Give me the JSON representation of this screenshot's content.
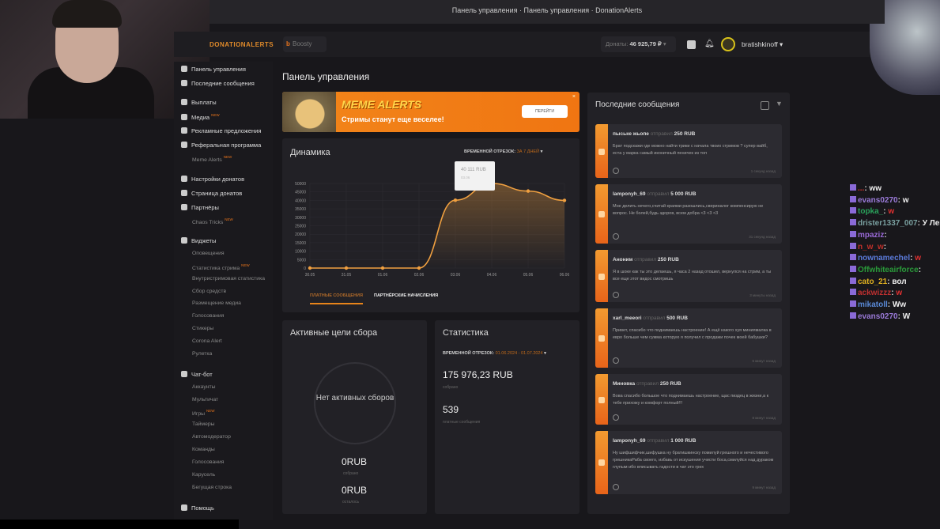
{
  "window": {
    "title": "Панель управления · Панель управления · DonationAlerts"
  },
  "header": {
    "logo": "DONATIONALERTS",
    "boosty": "Boosty",
    "donates_label": "Донаты:",
    "donates_value": "46 925,79 ₽",
    "username": "bratishkinoff"
  },
  "sidebar": {
    "items": [
      {
        "label": "Панель управления",
        "type": "main"
      },
      {
        "label": "Последние сообщения",
        "type": "main"
      },
      {
        "label": "Выплаты",
        "type": "main"
      },
      {
        "label": "Медиа",
        "type": "main",
        "badge": "NEW"
      },
      {
        "label": "Рекламные предложения",
        "type": "main"
      },
      {
        "label": "Реферальная программа",
        "type": "main"
      },
      {
        "label": "Meme Alerts",
        "type": "sub",
        "badge": "NEW"
      },
      {
        "label": "Настройки донатов",
        "type": "main"
      },
      {
        "label": "Страница донатов",
        "type": "main"
      },
      {
        "label": "Партнёры",
        "type": "main"
      },
      {
        "label": "Chaos Tricks",
        "type": "sub",
        "badge": "NEW"
      },
      {
        "label": "Виджеты",
        "type": "main"
      },
      {
        "label": "Оповещения",
        "type": "sub"
      },
      {
        "label": "Статистика стрима",
        "type": "sub",
        "badge": "NEW"
      },
      {
        "label": "Внутристримовая статистика",
        "type": "sub"
      },
      {
        "label": "Сбор средств",
        "type": "sub"
      },
      {
        "label": "Размещение медиа",
        "type": "sub"
      },
      {
        "label": "Голосования",
        "type": "sub"
      },
      {
        "label": "Стикеры",
        "type": "sub"
      },
      {
        "label": "Corona Alert",
        "type": "sub"
      },
      {
        "label": "Рулетка",
        "type": "sub"
      },
      {
        "label": "Чат-бот",
        "type": "main"
      },
      {
        "label": "Аккаунты",
        "type": "sub"
      },
      {
        "label": "Мультичат",
        "type": "sub"
      },
      {
        "label": "Игры",
        "type": "sub",
        "badge": "NEW"
      },
      {
        "label": "Таймеры",
        "type": "sub"
      },
      {
        "label": "Автомодератор",
        "type": "sub"
      },
      {
        "label": "Команды",
        "type": "sub"
      },
      {
        "label": "Голосования",
        "type": "sub"
      },
      {
        "label": "Карусель",
        "type": "sub"
      },
      {
        "label": "Бегущая строка",
        "type": "sub"
      },
      {
        "label": "Помощь",
        "type": "main"
      }
    ]
  },
  "main": {
    "title": "Панель управления",
    "banner": {
      "title": "MEME ALERTS",
      "subtitle": "Стримы станут еще веселее!",
      "button": "ПЕРЕЙТИ",
      "close": "×"
    },
    "dynamics": {
      "title": "Динамика",
      "period_label": "ВРЕМЕННОЙ ОТРЕЗОК:",
      "period_value": "ЗА 7 ДНЕЙ",
      "tabs": [
        "ПЛАТНЫЕ СООБЩЕНИЯ",
        "ПАРТНЁРСКИЕ НАЧИСЛЕНИЯ"
      ],
      "tooltip_value": "40 111 RUB",
      "tooltip_date": "03.06"
    },
    "goals": {
      "title": "Активные цели сбора",
      "empty": "Нет активных сборов",
      "collected": "0RUB",
      "collected_label": "собрано",
      "left": "0RUB",
      "left_label": "осталось"
    },
    "stats": {
      "title": "Статистика",
      "period_label": "ВРЕМЕННОЙ ОТРЕЗОК:",
      "period_value": "01.06.2024 - 01.07.2024",
      "total": "175 976,23 RUB",
      "total_label": "собрано",
      "count": "539",
      "count_label": "платные сообщения"
    }
  },
  "messages": {
    "title": "Последние сообщения",
    "sent_word": "отправил",
    "items": [
      {
        "user": "пыське жьопе",
        "amount": "250 RUB",
        "text": "Брат подскажи где можно найти трики с начала твоих стримов ? супер вайб, еста у марка самый иконичный пеничек из топ",
        "time": "1 секунд назад"
      },
      {
        "user": "lamponyh_69",
        "amount": "5 000 RUB",
        "text": "Мне делить нечего,считай краями разошлись,свериналог компенсирую не вопрос. Не болей,будь здоров, всем добра <3 <3 <3",
        "time": "31 секунд назад"
      },
      {
        "user": "Аноним",
        "amount": "250 RUB",
        "text": "Я в шоке как ты это делаешь, я часа 2 назад отошел, вернулся на стрим, а ты все еще этот видос смотришь",
        "time": "3 минуты назад"
      },
      {
        "user": "xarl_meeori",
        "amount": "500 RUB",
        "text": "Привет, спасибо что поднимаешь настроение! А ещё какого хуя миниямалка в евро больше чем сумма которую я получил с продажи почек моей бабушки?",
        "time": "6 минут назад"
      },
      {
        "user": "Миновка",
        "amount": "250 RUB",
        "text": "Вова спасибо большое что поднимаешь настроение, щас пиздец в жизни,а к тебе прихожу и комфорт полный!!!",
        "time": "8 минут назад"
      },
      {
        "user": "lamponyh_69",
        "amount": "1 000 RUB",
        "text": "Ну шифшифчик,шифушка ну братишкинску помилуй грешного и нечестивого грешникаРаба своего, избавь от искушения учисти бoса,смилуйся над дураком глупым ибо вписывать гадости в чат это грех",
        "time": "9 минут назад"
      }
    ]
  },
  "chat": [
    {
      "user": "...",
      "text": "ww",
      "color": "#d0302a"
    },
    {
      "user": "evans0270",
      "text": "w",
      "color": "#9a7ad8"
    },
    {
      "user": "topka_",
      "text": "w",
      "color": "#2aa05a",
      "textcolor": "#e03030"
    },
    {
      "user": "drister1337_007",
      "text": "У Лексингтон?!",
      "color": "#7aa0a0"
    },
    {
      "user": "mpaziz",
      "text": "",
      "color": "#9a6ad8"
    },
    {
      "user": "n_w_w",
      "text": "",
      "color": "#c0302a"
    },
    {
      "user": "nownamechel",
      "text": "w",
      "color": "#5a7ad8",
      "textcolor": "#e03030"
    },
    {
      "user": "Offwhiteairforce",
      "text": "",
      "color": "#2a9a3a"
    },
    {
      "user": "cato_21",
      "text": "вол",
      "color": "#e0b020"
    },
    {
      "user": "ackwizzz",
      "text": "w",
      "color": "#c03030",
      "textcolor": "#e03030"
    },
    {
      "user": "mikatoll",
      "text": "Ww",
      "color": "#5a8ad8"
    },
    {
      "user": "evans0270",
      "text": "W",
      "color": "#9a7ad8"
    }
  ],
  "colors": {
    "accent": "#f0841a",
    "background": "#18171b",
    "card": "#222126"
  },
  "chart_data": {
    "type": "area",
    "categories": [
      "30.05",
      "31.05",
      "01.06",
      "02.06",
      "03.06",
      "04.06",
      "05.06",
      "06.06"
    ],
    "values": [
      0,
      0,
      0,
      0,
      40111,
      50000,
      45500,
      40000
    ],
    "yticks": [
      0,
      5000,
      10000,
      15000,
      20000,
      25000,
      30000,
      35000,
      40000,
      45000,
      50000
    ],
    "ylim": [
      0,
      50000
    ],
    "grid": true,
    "color": "#f0a040"
  }
}
